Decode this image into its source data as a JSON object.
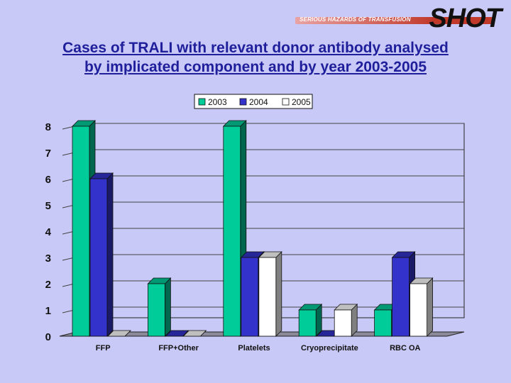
{
  "logo": {
    "main": "SHOT",
    "sub": "SERIOUS HAZARDS OF TRANSFUSION"
  },
  "title_line1": "Cases of TRALI with relevant donor antibody analysed",
  "title_line2": "by implicated component and by year 2003-2005",
  "chart_data": {
    "type": "bar",
    "title": "Cases of TRALI with relevant donor antibody analysed by implicated component and by year 2003-2005",
    "categories": [
      "FFP",
      "FFP+Other",
      "Platelets",
      "Cryoprecipitate",
      "RBC OA"
    ],
    "series": [
      {
        "name": "2003",
        "values": [
          8,
          2,
          8,
          1,
          1
        ],
        "color": "#00cc99"
      },
      {
        "name": "2004",
        "values": [
          6,
          0,
          3,
          0,
          3
        ],
        "color": "#3333cc"
      },
      {
        "name": "2005",
        "values": [
          0,
          0,
          3,
          1,
          2
        ],
        "color": "#ffffff"
      }
    ],
    "ylim": [
      0,
      8
    ],
    "yticks": [
      "0",
      "1",
      "2",
      "3",
      "4",
      "5",
      "6",
      "7",
      "8"
    ],
    "legend_position": "top-center",
    "grid": true,
    "xlabel": "",
    "ylabel": ""
  }
}
